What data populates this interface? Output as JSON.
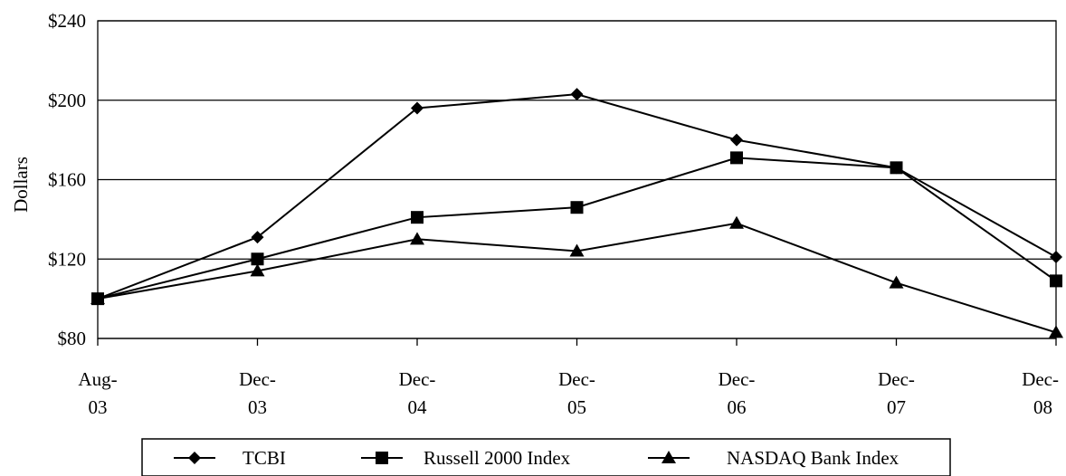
{
  "chart_data": {
    "type": "line",
    "title": "",
    "xlabel": "",
    "ylabel": "Dollars",
    "categories": [
      [
        "Aug-",
        "03"
      ],
      [
        "Dec-",
        "03"
      ],
      [
        "Dec-",
        "04"
      ],
      [
        "Dec-",
        "05"
      ],
      [
        "Dec-",
        "06"
      ],
      [
        "Dec-",
        "07"
      ],
      [
        "Dec-",
        "08"
      ]
    ],
    "ylim": [
      80,
      240
    ],
    "yticks": [
      80,
      120,
      160,
      200,
      240
    ],
    "ytick_labels": [
      "$80",
      "$120",
      "$160",
      "$200",
      "$240"
    ],
    "grid": "horizontal",
    "legend_position": "bottom",
    "series": [
      {
        "name": "TCBI",
        "marker": "diamond",
        "values": [
          100,
          131,
          196,
          203,
          180,
          166,
          121
        ]
      },
      {
        "name": "Russell 2000 Index",
        "marker": "square",
        "values": [
          100,
          120,
          141,
          146,
          171,
          166,
          109
        ]
      },
      {
        "name": "NASDAQ Bank Index",
        "marker": "triangle",
        "values": [
          100,
          114,
          130,
          124,
          138,
          108,
          83
        ]
      }
    ],
    "colors": {
      "line": "#000000",
      "grid": "#000000"
    }
  }
}
